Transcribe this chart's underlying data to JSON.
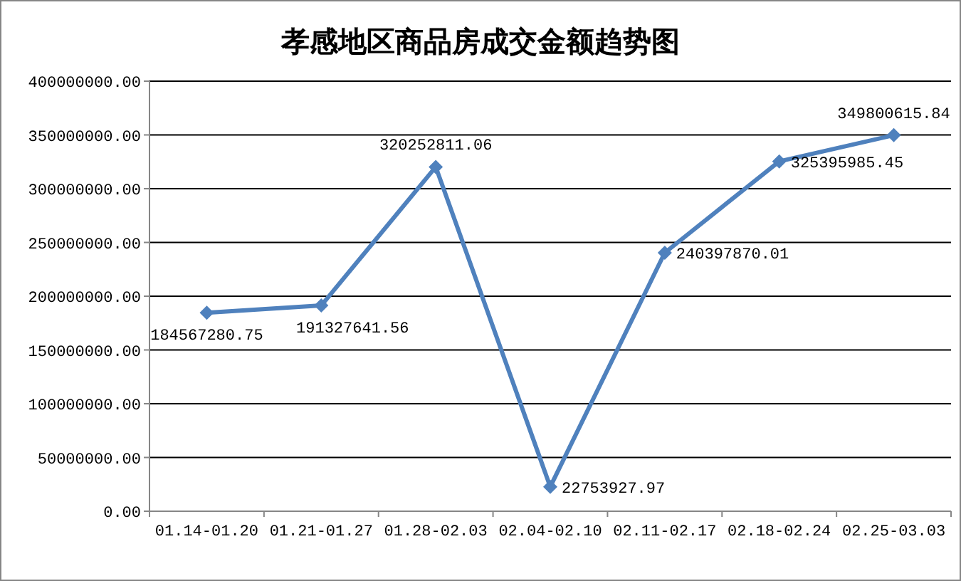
{
  "chart_data": {
    "type": "line",
    "title": "孝感地区商品房成交金额趋势图",
    "categories": [
      "01.14-01.20",
      "01.21-01.27",
      "01.28-02.03",
      "02.04-02.10",
      "02.11-02.17",
      "02.18-02.24",
      "02.25-03.03"
    ],
    "values": [
      184567280.75,
      191327641.56,
      320252811.06,
      22753927.97,
      240397870.01,
      325395985.45,
      349800615.84
    ],
    "color": "#4f81bd",
    "marker": "diamond",
    "grid": "y",
    "data_labels": true,
    "ylim": [
      0,
      400000000
    ],
    "yticks": [
      {
        "value": 0,
        "label": "0.00"
      },
      {
        "value": 50000000,
        "label": "50000000.00"
      },
      {
        "value": 100000000,
        "label": "100000000.00"
      },
      {
        "value": 150000000,
        "label": "150000000.00"
      },
      {
        "value": 200000000,
        "label": "200000000.00"
      },
      {
        "value": 250000000,
        "label": "250000000.00"
      },
      {
        "value": 300000000,
        "label": "300000000.00"
      },
      {
        "value": 350000000,
        "label": "350000000.00"
      },
      {
        "value": 400000000,
        "label": "400000000.00"
      }
    ]
  }
}
